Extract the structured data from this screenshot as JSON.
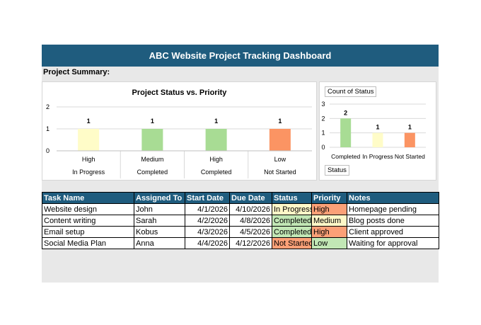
{
  "title": "ABC Website Project Tracking Dashboard",
  "summary_label": "Project Summary:",
  "colors": {
    "header_bg": "#1f5c7e",
    "high": "#fba077",
    "medium": "#fff8c8",
    "low": "#c2e7b5",
    "in_progress": "#fff8c8",
    "completed": "#c2e7b5",
    "not_started": "#fba077",
    "bar_yellow": "#fffcc8",
    "bar_green": "#a8dc94",
    "bar_orange": "#fb9463"
  },
  "chart_data": [
    {
      "type": "bar",
      "title": "Project Status vs. Priority",
      "categories": [
        {
          "priority": "High",
          "status": "In Progress"
        },
        {
          "priority": "Medium",
          "status": "Completed"
        },
        {
          "priority": "High",
          "status": "Completed"
        },
        {
          "priority": "Low",
          "status": "Not Started"
        }
      ],
      "values": [
        1,
        1,
        1,
        1
      ],
      "bar_colors": [
        "#fffcc8",
        "#a8dc94",
        "#a8dc94",
        "#fb9463"
      ],
      "yticks": [
        "0",
        "1",
        "2"
      ],
      "ylim": [
        0,
        2
      ],
      "grid": true
    },
    {
      "type": "bar",
      "title": "",
      "filter_top": "Count of Status",
      "filter_bottom": "Status",
      "categories": [
        "Completed",
        "In Progress",
        "Not Started"
      ],
      "values": [
        2,
        1,
        1
      ],
      "bar_colors": [
        "#a8dc94",
        "#fffcc8",
        "#fb9463"
      ],
      "yticks": [
        "0",
        "1",
        "2",
        "3"
      ],
      "ylim": [
        0,
        3
      ],
      "grid": true
    }
  ],
  "table": {
    "headers": [
      "Task Name",
      "Assigned To",
      "Start Date",
      "Due Date",
      "Status",
      "Priority",
      "Notes"
    ],
    "rows": [
      [
        "Website design",
        "John",
        "4/1/2026",
        "4/10/2026",
        "In Progress",
        "High",
        "Homepage pending"
      ],
      [
        "Content writing",
        "Sarah",
        "4/2/2026",
        "4/8/2026",
        "Completed",
        "Medium",
        "Blog posts done"
      ],
      [
        "Email setup",
        "Kobus",
        "4/3/2026",
        "4/5/2026",
        "Completed",
        "High",
        "Client approved"
      ],
      [
        "Social Media Plan",
        "Anna",
        "4/4/2026",
        "4/12/2026",
        "Not Started",
        "Low",
        "Waiting for approval"
      ]
    ]
  }
}
